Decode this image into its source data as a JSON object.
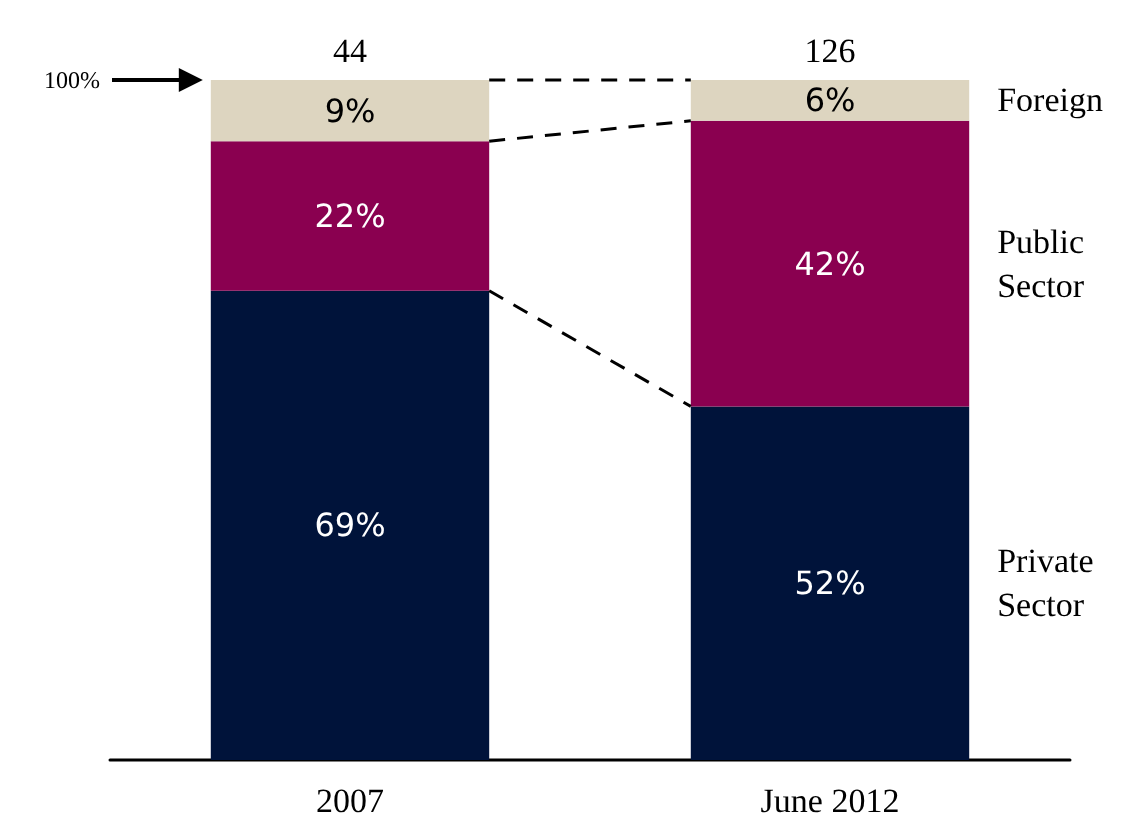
{
  "chart_data": {
    "type": "bar",
    "stacked": true,
    "categories": [
      "2007",
      "June 2012"
    ],
    "series": [
      {
        "name": "Private Sector",
        "color": "#00133a",
        "values": [
          69,
          52
        ],
        "value_labels": [
          "69%",
          "52%"
        ]
      },
      {
        "name": "Public Sector",
        "color": "#8a0050",
        "values": [
          22,
          42
        ],
        "value_labels": [
          "22%",
          "42%"
        ]
      },
      {
        "name": "Foreign",
        "color": "#ddd5c0",
        "values": [
          9,
          6
        ],
        "value_labels": [
          "9%",
          "6%"
        ]
      }
    ],
    "ylim": [
      0,
      100
    ],
    "tick_labels": "x",
    "legend": false,
    "grid": false,
    "annotations": [
      "100%",
      {
        "text": "44",
        "x": "2007",
        "y": 100
      },
      {
        "text": "126",
        "x": "June 2012",
        "y": 100
      }
    ]
  }
}
